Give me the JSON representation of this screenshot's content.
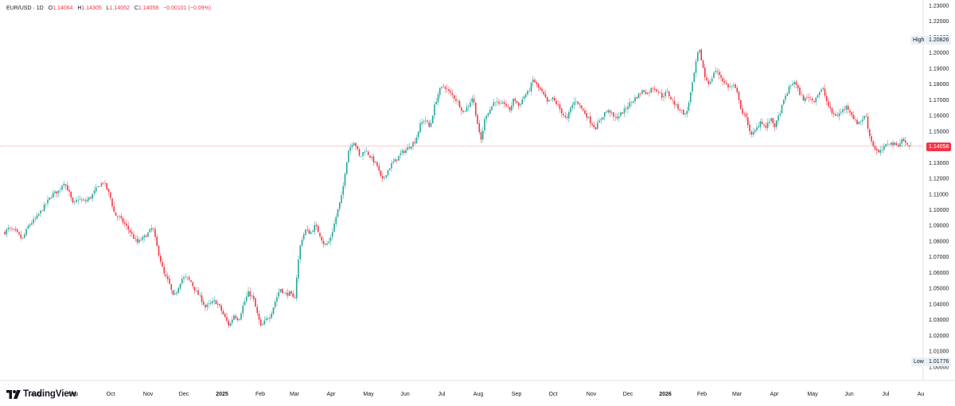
{
  "legend": {
    "symbol": "EUR/USD · 1D",
    "open_label": "O",
    "open": "1.14064",
    "high_label": "H",
    "high": "1.14305",
    "low_label": "L",
    "low": "1.14052",
    "close_label": "C",
    "close": "1.14058",
    "change": "−0.00101 (−0.09%)"
  },
  "markers": {
    "high_label": "High",
    "high_value": "1.20826",
    "low_label": "Low",
    "low_value": "1.01776",
    "last_value": "1.14058"
  },
  "brand": {
    "name": "TradingView"
  },
  "colors": {
    "up": "#26a69a",
    "down": "#f23645",
    "last_line": "#f23645"
  },
  "chart_data": {
    "type": "candlestick",
    "title": "EUR/USD · 1D",
    "y_range": [
      0.995,
      1.232
    ],
    "y_ticks": [
      "1.23000",
      "1.22000",
      "1.21000",
      "1.20000",
      "1.19000",
      "1.18000",
      "1.17000",
      "1.16000",
      "1.15000",
      "1.14000",
      "1.13000",
      "1.12000",
      "1.11000",
      "1.10000",
      "1.09000",
      "1.08000",
      "1.07000",
      "1.06000",
      "1.05000",
      "1.04000",
      "1.03000",
      "1.02000",
      "1.01000",
      "1.00000"
    ],
    "x_ticks": [
      "Aug",
      "Sep",
      "Oct",
      "Nov",
      "Dec",
      "2025",
      "Feb",
      "Mar",
      "Apr",
      "May",
      "Jun",
      "Jul",
      "Aug",
      "Sep",
      "Oct",
      "Nov",
      "Dec",
      "2026",
      "Feb",
      "Mar",
      "Apr",
      "May",
      "Jun",
      "Jul",
      "Au"
    ],
    "bold_x_ticks": [
      "2025",
      "2026"
    ],
    "grid": false,
    "high": 1.20826,
    "low": 1.01776,
    "last": 1.14058,
    "close_path": [
      [
        0,
        1.082
      ],
      [
        10,
        1.088
      ],
      [
        20,
        1.086
      ],
      [
        28,
        1.081
      ],
      [
        36,
        1.09
      ],
      [
        46,
        1.095
      ],
      [
        58,
        1.104
      ],
      [
        66,
        1.11
      ],
      [
        74,
        1.112
      ],
      [
        80,
        1.118
      ],
      [
        86,
        1.112
      ],
      [
        92,
        1.103
      ],
      [
        98,
        1.107
      ],
      [
        106,
        1.105
      ],
      [
        114,
        1.108
      ],
      [
        122,
        1.114
      ],
      [
        130,
        1.118
      ],
      [
        138,
        1.109
      ],
      [
        144,
        1.097
      ],
      [
        150,
        1.095
      ],
      [
        158,
        1.09
      ],
      [
        166,
        1.084
      ],
      [
        172,
        1.079
      ],
      [
        180,
        1.082
      ],
      [
        186,
        1.085
      ],
      [
        192,
        1.089
      ],
      [
        196,
        1.079
      ],
      [
        200,
        1.071
      ],
      [
        206,
        1.059
      ],
      [
        212,
        1.054
      ],
      [
        218,
        1.044
      ],
      [
        222,
        1.048
      ],
      [
        228,
        1.056
      ],
      [
        234,
        1.057
      ],
      [
        240,
        1.054
      ],
      [
        246,
        1.048
      ],
      [
        252,
        1.044
      ],
      [
        258,
        1.038
      ],
      [
        264,
        1.04
      ],
      [
        270,
        1.042
      ],
      [
        276,
        1.038
      ],
      [
        282,
        1.032
      ],
      [
        288,
        1.026
      ],
      [
        294,
        1.033
      ],
      [
        300,
        1.03
      ],
      [
        306,
        1.04
      ],
      [
        312,
        1.047
      ],
      [
        318,
        1.044
      ],
      [
        322,
        1.036
      ],
      [
        328,
        1.025
      ],
      [
        334,
        1.03
      ],
      [
        340,
        1.033
      ],
      [
        346,
        1.042
      ],
      [
        352,
        1.05
      ],
      [
        358,
        1.046
      ],
      [
        364,
        1.047
      ],
      [
        370,
        1.042
      ],
      [
        374,
        1.064
      ],
      [
        378,
        1.08
      ],
      [
        384,
        1.087
      ],
      [
        390,
        1.085
      ],
      [
        396,
        1.09
      ],
      [
        402,
        1.084
      ],
      [
        408,
        1.077
      ],
      [
        414,
        1.08
      ],
      [
        418,
        1.087
      ],
      [
        424,
        1.099
      ],
      [
        430,
        1.11
      ],
      [
        434,
        1.126
      ],
      [
        438,
        1.138
      ],
      [
        444,
        1.144
      ],
      [
        448,
        1.14
      ],
      [
        452,
        1.133
      ],
      [
        458,
        1.138
      ],
      [
        462,
        1.136
      ],
      [
        468,
        1.132
      ],
      [
        474,
        1.128
      ],
      [
        480,
        1.118
      ],
      [
        486,
        1.124
      ],
      [
        492,
        1.129
      ],
      [
        498,
        1.132
      ],
      [
        504,
        1.136
      ],
      [
        510,
        1.138
      ],
      [
        516,
        1.141
      ],
      [
        522,
        1.144
      ],
      [
        528,
        1.154
      ],
      [
        534,
        1.158
      ],
      [
        540,
        1.152
      ],
      [
        546,
        1.166
      ],
      [
        552,
        1.176
      ],
      [
        558,
        1.179
      ],
      [
        564,
        1.175
      ],
      [
        570,
        1.172
      ],
      [
        576,
        1.168
      ],
      [
        582,
        1.162
      ],
      [
        588,
        1.166
      ],
      [
        594,
        1.172
      ],
      [
        600,
        1.155
      ],
      [
        604,
        1.143
      ],
      [
        610,
        1.16
      ],
      [
        616,
        1.164
      ],
      [
        622,
        1.17
      ],
      [
        628,
        1.166
      ],
      [
        634,
        1.168
      ],
      [
        640,
        1.163
      ],
      [
        646,
        1.171
      ],
      [
        652,
        1.166
      ],
      [
        658,
        1.172
      ],
      [
        664,
        1.175
      ],
      [
        670,
        1.183
      ],
      [
        676,
        1.178
      ],
      [
        682,
        1.174
      ],
      [
        688,
        1.168
      ],
      [
        694,
        1.171
      ],
      [
        700,
        1.167
      ],
      [
        706,
        1.162
      ],
      [
        712,
        1.157
      ],
      [
        718,
        1.166
      ],
      [
        724,
        1.17
      ],
      [
        730,
        1.165
      ],
      [
        736,
        1.161
      ],
      [
        742,
        1.156
      ],
      [
        748,
        1.152
      ],
      [
        754,
        1.157
      ],
      [
        760,
        1.162
      ],
      [
        766,
        1.163
      ],
      [
        772,
        1.158
      ],
      [
        778,
        1.16
      ],
      [
        784,
        1.163
      ],
      [
        790,
        1.167
      ],
      [
        796,
        1.17
      ],
      [
        802,
        1.173
      ],
      [
        808,
        1.176
      ],
      [
        814,
        1.174
      ],
      [
        820,
        1.178
      ],
      [
        826,
        1.176
      ],
      [
        832,
        1.172
      ],
      [
        838,
        1.175
      ],
      [
        844,
        1.17
      ],
      [
        850,
        1.166
      ],
      [
        856,
        1.163
      ],
      [
        862,
        1.16
      ],
      [
        866,
        1.17
      ],
      [
        870,
        1.18
      ],
      [
        874,
        1.192
      ],
      [
        878,
        1.203
      ],
      [
        882,
        1.194
      ],
      [
        886,
        1.184
      ],
      [
        892,
        1.18
      ],
      [
        898,
        1.189
      ],
      [
        904,
        1.186
      ],
      [
        910,
        1.181
      ],
      [
        916,
        1.178
      ],
      [
        922,
        1.179
      ],
      [
        928,
        1.172
      ],
      [
        932,
        1.162
      ],
      [
        938,
        1.158
      ],
      [
        944,
        1.147
      ],
      [
        950,
        1.151
      ],
      [
        956,
        1.157
      ],
      [
        962,
        1.152
      ],
      [
        968,
        1.158
      ],
      [
        974,
        1.153
      ],
      [
        980,
        1.162
      ],
      [
        986,
        1.171
      ],
      [
        992,
        1.178
      ],
      [
        998,
        1.182
      ],
      [
        1004,
        1.175
      ],
      [
        1010,
        1.17
      ],
      [
        1016,
        1.172
      ],
      [
        1022,
        1.169
      ],
      [
        1028,
        1.174
      ],
      [
        1034,
        1.177
      ],
      [
        1040,
        1.167
      ],
      [
        1046,
        1.161
      ],
      [
        1052,
        1.16
      ],
      [
        1058,
        1.163
      ],
      [
        1064,
        1.166
      ],
      [
        1070,
        1.161
      ],
      [
        1076,
        1.155
      ],
      [
        1082,
        1.157
      ],
      [
        1088,
        1.16
      ],
      [
        1092,
        1.148
      ],
      [
        1098,
        1.14
      ],
      [
        1104,
        1.136
      ],
      [
        1110,
        1.139
      ],
      [
        1116,
        1.143
      ],
      [
        1122,
        1.142
      ],
      [
        1128,
        1.141
      ],
      [
        1134,
        1.145
      ],
      [
        1140,
        1.141
      ],
      [
        1145,
        1.14058
      ]
    ]
  }
}
